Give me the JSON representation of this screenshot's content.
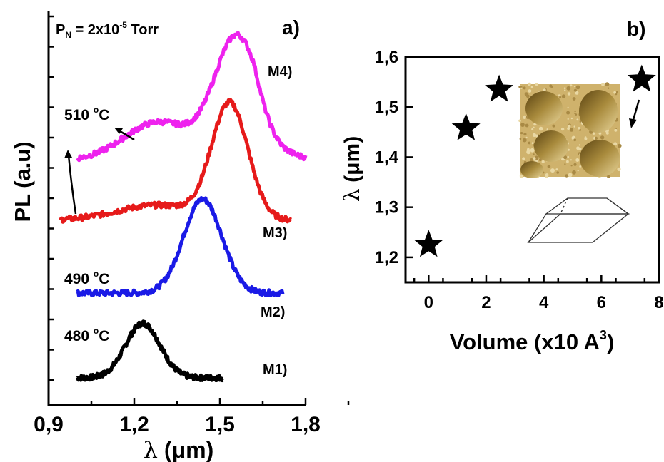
{
  "chart_data": [
    {
      "panel_label": "a)",
      "type": "line",
      "xlabel_symbol": "λ",
      "xlabel_unit": "(μm)",
      "ylabel": "PL (a.u)",
      "xlim": [
        0.9,
        1.8
      ],
      "x_ticks": [
        "0,9",
        "1,2",
        "1,5",
        "1,8"
      ],
      "x_tick_values": [
        0.9,
        1.2,
        1.5,
        1.8
      ],
      "y_ticks_labeled": false,
      "grid": false,
      "pressure_text": {
        "prefix": "P",
        "subscript": "N",
        "value": " = 2x10",
        "exponent": "-5",
        "unit": " Torr"
      },
      "temperature_labels": [
        {
          "value": "510 ",
          "unit": "C",
          "deg": "o"
        },
        {
          "value": "490 ",
          "unit": "C",
          "deg": "o"
        },
        {
          "value": "480 ",
          "unit": "C",
          "deg": "o"
        }
      ],
      "colors": {
        "M1": "#000000",
        "M2": "#1a1ae6",
        "M3": "#e61a1a",
        "M4": "#ee22ee"
      },
      "series": [
        {
          "name": "M1)",
          "color": "#000000",
          "x_start": 1.0,
          "x_end": 1.51,
          "baseline": 0.0,
          "peak_x": 1.23,
          "peak_height": 0.9,
          "width": 0.085
        },
        {
          "name": "M2)",
          "color": "#1a1ae6",
          "x_start": 1.0,
          "x_end": 1.72,
          "baseline": 1.4,
          "peak_x": 1.44,
          "peak_height": 1.55,
          "width": 0.095
        },
        {
          "name": "M3)",
          "color": "#e61a1a",
          "x_start": 0.94,
          "x_end": 1.75,
          "baseline": 2.6,
          "peak_x": 1.535,
          "peak_height": 1.9,
          "width": 0.09
        },
        {
          "name": "M4)",
          "color": "#ee22ee",
          "x_start": 1.0,
          "x_end": 1.8,
          "baseline": 3.6,
          "peak_x": 1.56,
          "peak_height": 1.9,
          "width": 0.11
        }
      ]
    },
    {
      "panel_label": "b)",
      "type": "scatter",
      "xlabel": "Volume (x10 A",
      "xlabel_exponent": "3",
      "xlabel_close": ")",
      "ylabel_symbol": "λ",
      "ylabel_unit": "(μm)",
      "xlim": [
        -0.8,
        8.0
      ],
      "ylim": [
        1.15,
        1.6
      ],
      "x_ticks": [
        "0",
        "2",
        "4",
        "6",
        "8"
      ],
      "x_tick_values": [
        0,
        2,
        4,
        6,
        8
      ],
      "y_ticks": [
        "1,2",
        "1,3",
        "1,4",
        "1,5",
        "1,6"
      ],
      "y_tick_values": [
        1.2,
        1.3,
        1.4,
        1.5,
        1.6
      ],
      "grid": false,
      "marker": "star",
      "points": [
        {
          "x": 0.0,
          "y": 1.225
        },
        {
          "x": 1.3,
          "y": 1.458
        },
        {
          "x": 2.45,
          "y": 1.535
        },
        {
          "x": 7.4,
          "y": 1.555
        }
      ]
    }
  ]
}
